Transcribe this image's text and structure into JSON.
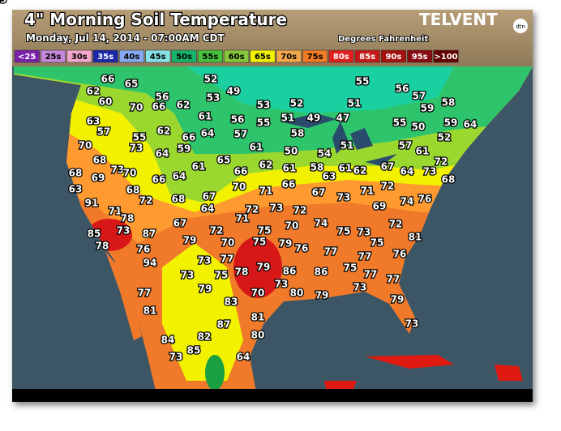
{
  "header": {
    "title": "4\" Morning Soil Temperature",
    "date": "Monday, Jul 14, 2014 - 07:00AM CDT",
    "units": "Degrees Fahrenheit",
    "logo": "TELVENT",
    "logo_sub": "dtn"
  },
  "legend": [
    "<25",
    "25s",
    "30s",
    "35s",
    "40s",
    "45s",
    "50s",
    "55s",
    "60s",
    "65s",
    "70s",
    "75s",
    "80s",
    "85s",
    "90s",
    "95s",
    ">100"
  ],
  "stations": [
    66,
    65,
    62,
    60,
    70,
    66,
    56,
    62,
    52,
    53,
    49,
    53,
    52,
    51,
    55,
    56,
    57,
    59,
    58,
    59,
    64,
    55,
    50,
    63,
    57,
    61,
    56,
    55,
    51,
    49,
    47,
    58,
    51,
    57,
    61,
    52,
    70,
    55,
    73,
    62,
    66,
    64,
    57,
    59,
    64,
    61,
    50,
    54,
    68,
    68,
    73,
    70,
    69,
    66,
    64,
    61,
    65,
    66,
    62,
    61,
    58,
    63,
    61,
    62,
    67,
    64,
    73,
    72,
    68,
    63,
    91,
    68,
    72,
    68,
    67,
    64,
    70,
    71,
    66,
    67,
    73,
    71,
    72,
    74,
    76,
    69,
    71,
    78,
    85,
    73,
    87,
    67,
    72,
    71,
    72,
    73,
    72,
    70,
    74,
    75,
    73,
    72,
    81,
    78,
    76,
    94,
    79,
    70,
    75,
    75,
    79,
    76,
    77,
    75,
    77,
    76,
    73,
    77,
    75,
    78,
    79,
    86,
    86,
    75,
    77,
    77,
    73,
    73,
    79,
    70,
    80,
    79,
    73,
    79,
    77,
    83,
    81,
    81,
    87,
    73,
    80,
    84,
    82,
    73,
    85,
    64,
    79
  ]
}
